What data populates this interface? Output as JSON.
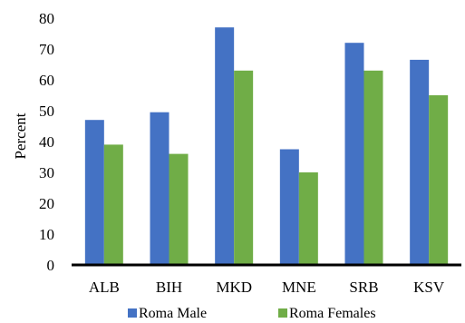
{
  "chart_data": {
    "type": "bar",
    "title": "",
    "xlabel": "",
    "ylabel": "Percent",
    "ylim": [
      0,
      80
    ],
    "yticks": [
      0,
      10,
      20,
      30,
      40,
      50,
      60,
      70,
      80
    ],
    "grid": false,
    "legend_position": "bottom",
    "categories": [
      "ALB",
      "BIH",
      "MKD",
      "MNE",
      "SRB",
      "KSV"
    ],
    "series": [
      {
        "name": "Roma Male",
        "color": "#4472C4",
        "values": [
          47,
          49.5,
          77,
          37.5,
          72,
          66.5
        ]
      },
      {
        "name": "Roma Females",
        "color": "#70AD47",
        "values": [
          39,
          36,
          63,
          30,
          63,
          55
        ]
      }
    ]
  }
}
